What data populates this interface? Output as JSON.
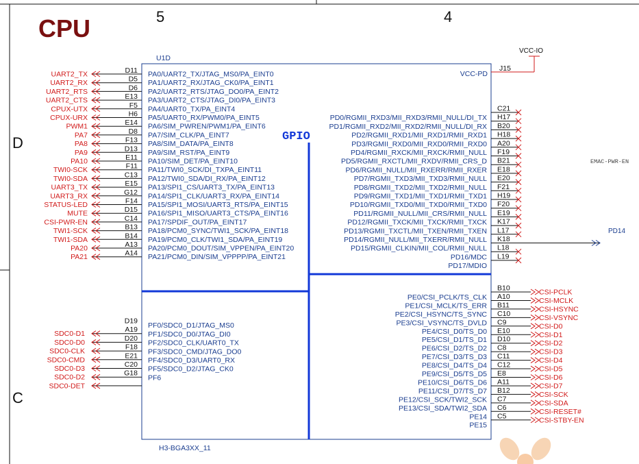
{
  "sheet": {
    "title": "CPU",
    "col_5": "5",
    "col_4": "4",
    "row_d": "D",
    "row_c": "C",
    "ref": "U1D",
    "part": "H3-BGA3XX_11",
    "block_label": "GPIO",
    "vcc_io": "VCC-IO",
    "vcc_pd": "VCC-PD",
    "vcc_pd_ball": "J15",
    "emac_note": "EMAC-PWR-EN",
    "pd14_net": "PD14"
  },
  "colors": {
    "net": "#d11a1a",
    "pin": "#1a3d8f",
    "bus": "#1238d8",
    "line": "#111111"
  },
  "pa_pins": [
    {
      "net": "UART2_TX",
      "ball": "D11",
      "pin": "PA0/UART2_TX/JTAG_MS0/PA_EINT0"
    },
    {
      "net": "UART2_RX",
      "ball": "D5",
      "pin": "PA1/UART2_RX/JTAG_CK0/PA_EINT1"
    },
    {
      "net": "UART2_RTS",
      "ball": "D6",
      "pin": "PA2/UART2_RTS/JTAG_DO0/PA_EINT2"
    },
    {
      "net": "UART2_CTS",
      "ball": "E13",
      "pin": "PA3/UART2_CTS/JTAG_DI0/PA_EINT3"
    },
    {
      "net": "CPUX-UTX",
      "ball": "F5",
      "pin": "PA4/UART0_TX/PA_EINT4"
    },
    {
      "net": "CPUX-URX",
      "ball": "H6",
      "pin": "PA5/UART0_RX/PWM0/PA_EINT5"
    },
    {
      "net": "PWM1",
      "ball": "E14",
      "pin": "PA6/SIM_PWREN/PWM1/PA_EINT6"
    },
    {
      "net": "PA7",
      "ball": "D8",
      "pin": "PA7/SIM_CLK/PA_EINT7"
    },
    {
      "net": "PA8",
      "ball": "F13",
      "pin": "PA8/SIM_DATA/PA_EINT8"
    },
    {
      "net": "PA9",
      "ball": "D13",
      "pin": "PA9/SIM_RST/PA_EINT9"
    },
    {
      "net": "PA10",
      "ball": "E11",
      "pin": "PA10/SIM_DET/PA_EINT10"
    },
    {
      "net": "TWI0-SCK",
      "ball": "F11",
      "pin": "PA11/TWI0_SCK/DI_TXPA_EINT11"
    },
    {
      "net": "TWI0-SDA",
      "ball": "C13",
      "pin": "PA12/TWI0_SDA/DI_RX/PA_EINT12"
    },
    {
      "net": "UART3_TX",
      "ball": "E15",
      "pin": "PA13/SPI1_CS/UART3_TX/PA_EINT13"
    },
    {
      "net": "UART3_RX",
      "ball": "G12",
      "pin": "PA14/SPI1_CLK/UART3_RX/PA_EINT14"
    },
    {
      "net": "STATUS-LED",
      "ball": "F14",
      "pin": "PA15/SPI1_MOSI/UART3_RTS/PA_EINT15"
    },
    {
      "net": "MUTE",
      "ball": "D15",
      "pin": "PA16/SPI1_MISO/UART3_CTS/PA_EINT16"
    },
    {
      "net": "CSI-PWR-EN",
      "ball": "C14",
      "pin": "PA17/SPDIF_OUT/PA_EINT17"
    },
    {
      "net": "TWI1-SCK",
      "ball": "B13",
      "pin": "PA18/PCM0_SYNC/TWI1_SCK/PA_EINT18"
    },
    {
      "net": "TWI1-SDA",
      "ball": "B14",
      "pin": "PA19/PCM0_CLK/TWI1_SDA/PA_EINT19"
    },
    {
      "net": "PA20",
      "ball": "A13",
      "pin": "PA20/PCM0_DOUT/SIM_VPPEN/PA_EINT20"
    },
    {
      "net": "PA21",
      "ball": "A14",
      "pin": "PA21/PCM0_DIN/SIM_VPPPP/PA_EINT21"
    }
  ],
  "pf_pins": [
    {
      "net": "",
      "ball": "D19",
      "pin": ""
    },
    {
      "net": "SDC0-D1",
      "ball": "A19",
      "pin": "PF0/SDC0_D1/JTAG_MS0"
    },
    {
      "net": "SDC0-D0",
      "ball": "D20",
      "pin": "PF1/SDC0_D0/JTAG_DI0"
    },
    {
      "net": "SDC0-CLK",
      "ball": "F18",
      "pin": "PF2/SDC0_CLK/UART0_TX"
    },
    {
      "net": "SDC0-CMD",
      "ball": "E21",
      "pin": "PF3/SDC0_CMD/JTAG_DO0"
    },
    {
      "net": "SDC0-D3",
      "ball": "C20",
      "pin": "PF4/SDC0_D3/UART0_RX"
    },
    {
      "net": "SDC0-D2",
      "ball": "G18",
      "pin": "PF5/SDC0_D2/JTAG_CK0"
    },
    {
      "net": "SDC0-DET",
      "ball": "",
      "pin": "PF6"
    }
  ],
  "pd_pins": [
    {
      "ball": "C21",
      "pin": ""
    },
    {
      "ball": "H17",
      "pin": "PD0/RGMII_RXD3/MII_RXD3/RMII_NULL/DI_TX"
    },
    {
      "ball": "B20",
      "pin": "PD1/RGMII_RXD2/MII_RXD2/RMII_NULL/DI_RX"
    },
    {
      "ball": "H18",
      "pin": "PD2/RGMII_RXD1/MII_RXD1/RMII_RXD1"
    },
    {
      "ball": "A20",
      "pin": "PD3/RGMII_RXD0/MII_RXD0/RMII_RXD0"
    },
    {
      "ball": "F19",
      "pin": "PD4/RGMII_RXCK/MII_RXCK/RMII_NULL"
    },
    {
      "ball": "B21",
      "pin": "PD5/RGMII_RXCTL/MII_RXDV/RMII_CRS_D"
    },
    {
      "ball": "E18",
      "pin": "PD6/RGMII_NULL/MII_RXERR/RMII_RXER"
    },
    {
      "ball": "E20",
      "pin": "PD7/RGMII_TXD3/MII_TXD3/RMII_NULL"
    },
    {
      "ball": "F21",
      "pin": "PD8/RGMII_TXD2/MII_TXD2/RMII_NULL"
    },
    {
      "ball": "H19",
      "pin": "PD9/RGMII_TXD1/MII_TXD1/RMII_TXD1"
    },
    {
      "ball": "F20",
      "pin": "PD10/RGMII_TXD0/MII_TXD0/RMII_TXD0"
    },
    {
      "ball": "E19",
      "pin": "PD11/RGMII_NULL/MII_CRS/RMII_NULL"
    },
    {
      "ball": "K17",
      "pin": "PD12/RGMII_TXCK/MII_TXCK/RMII_TXCK"
    },
    {
      "ball": "L17",
      "pin": "PD13/RGMII_TXCTL/MII_TXEN/RMII_TXEN"
    },
    {
      "ball": "K18",
      "pin": "PD14/RGMII_NULL/MII_TXERR/RMII_NULL"
    },
    {
      "ball": "L18",
      "pin": "PD15/RGMII_CLKIN/MII_COL/RMII_NULL"
    },
    {
      "ball": "L19",
      "pin": "PD16/MDC"
    },
    {
      "ball": "",
      "pin": "PD17/MDIO"
    }
  ],
  "pe_pins": [
    {
      "ball": "B10",
      "pin": "",
      "net": "CSI-PCLK"
    },
    {
      "ball": "A10",
      "pin": "PE0/CSI_PCLK/TS_CLK",
      "net": "CSI-MCLK"
    },
    {
      "ball": "B11",
      "pin": "PE1/CSI_MCLK/TS_ERR",
      "net": "CSI-HSYNC"
    },
    {
      "ball": "C10",
      "pin": "PE2/CSI_HSYNC/TS_SYNC",
      "net": "CSI-VSYNC"
    },
    {
      "ball": "C9",
      "pin": "PE3/CSI_VSYNC/TS_DVLD",
      "net": "CSI-D0"
    },
    {
      "ball": "E10",
      "pin": "PE4/CSI_D0/TS_D0",
      "net": "CSI-D1"
    },
    {
      "ball": "D10",
      "pin": "PE5/CSI_D1/TS_D1",
      "net": "CSI-D2"
    },
    {
      "ball": "C8",
      "pin": "PE6/CSI_D2/TS_D2",
      "net": "CSI-D3"
    },
    {
      "ball": "C11",
      "pin": "PE7/CSI_D3/TS_D3",
      "net": "CSI-D4"
    },
    {
      "ball": "C12",
      "pin": "PE8/CSI_D4/TS_D4",
      "net": "CSI-D5"
    },
    {
      "ball": "E8",
      "pin": "PE9/CSI_D5/TS_D5",
      "net": "CSI-D6"
    },
    {
      "ball": "A11",
      "pin": "PE10/CSI_D6/TS_D6",
      "net": "CSI-D7"
    },
    {
      "ball": "B12",
      "pin": "PE11/CSI_D7/TS_D7",
      "net": "CSI-SCK"
    },
    {
      "ball": "C7",
      "pin": "PE12/CSI_SCK/TWI2_SCK",
      "net": "CSI-SDA"
    },
    {
      "ball": "C6",
      "pin": "PE13/CSI_SDA/TWI2_SDA",
      "net": "CSI-RESET#"
    },
    {
      "ball": "C5",
      "pin": "PE14",
      "net": "CSI-STBY-EN"
    },
    {
      "ball": "",
      "pin": "PE15",
      "net": ""
    }
  ]
}
